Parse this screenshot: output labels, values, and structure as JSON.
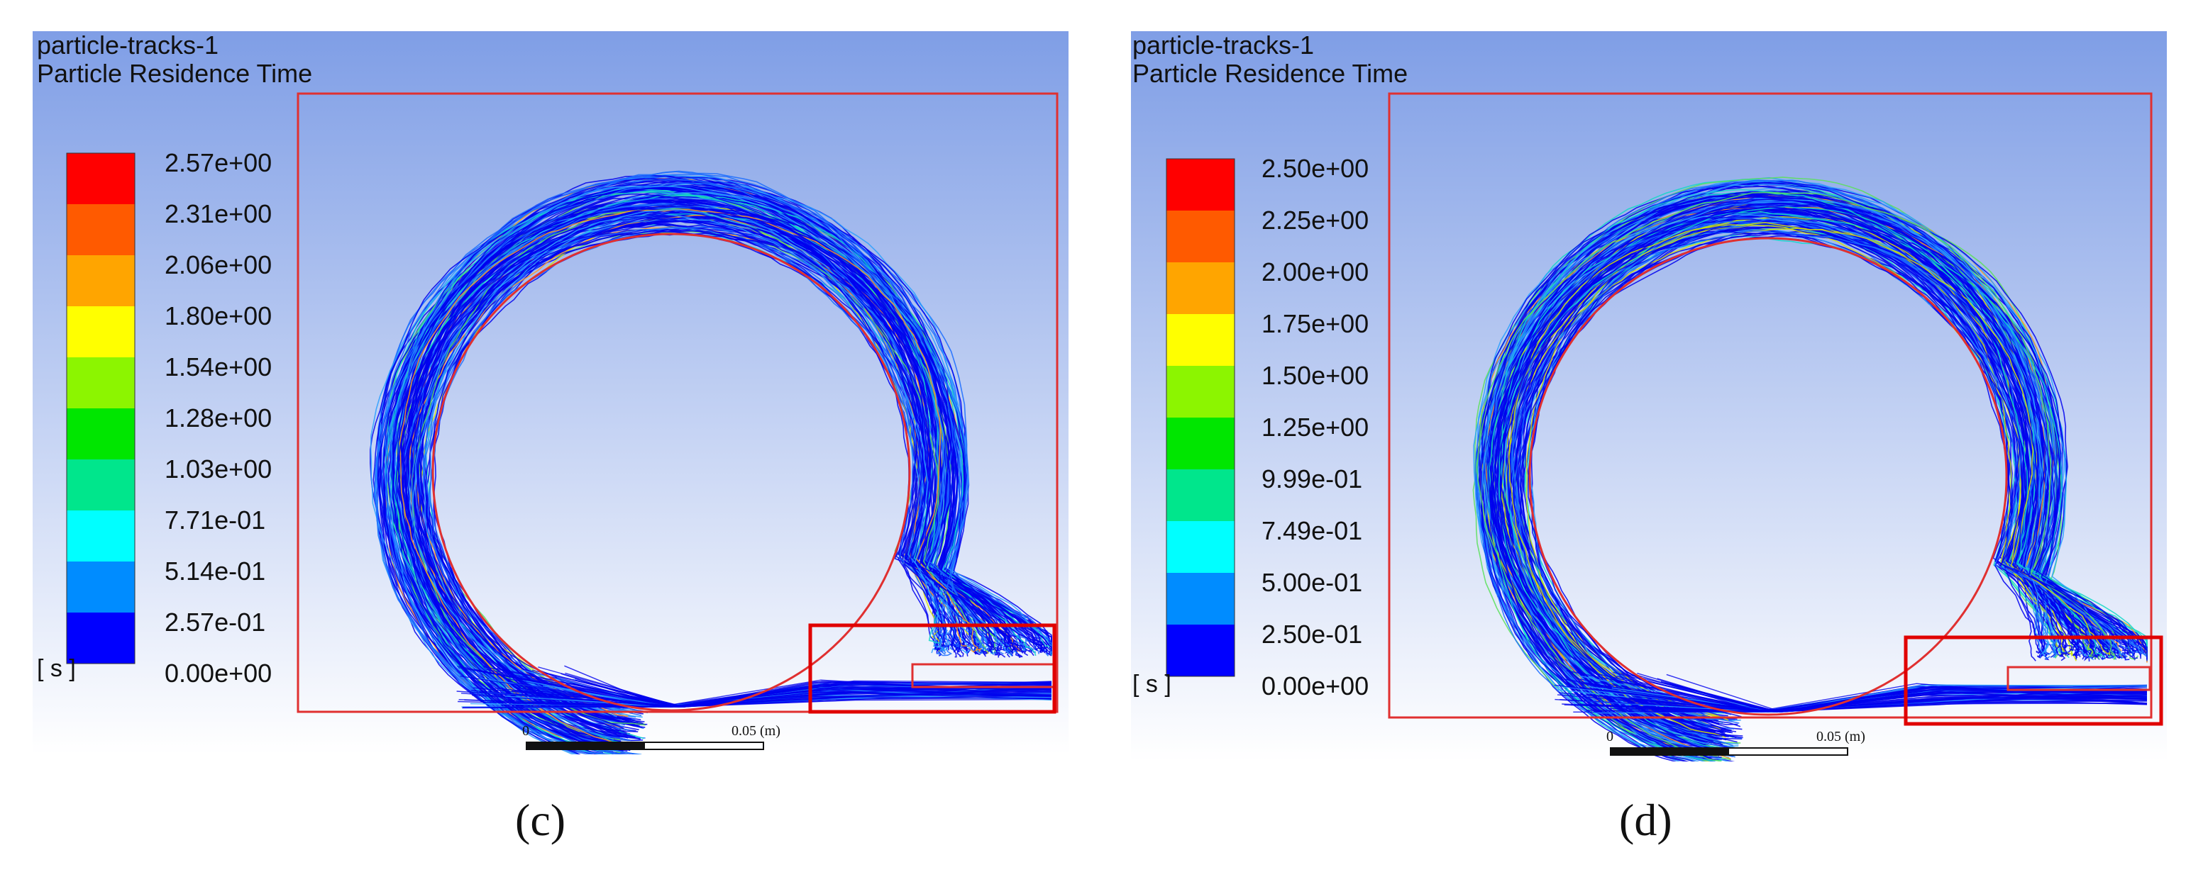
{
  "panels": [
    {
      "id": "c",
      "title_line1": "particle-tracks-1",
      "title_line2": "Particle Residence Time",
      "unit": "[ s ]",
      "legend": [
        "2.57e+00",
        "2.31e+00",
        "2.06e+00",
        "1.80e+00",
        "1.54e+00",
        "1.28e+00",
        "1.03e+00",
        "7.71e-01",
        "5.14e-01",
        "2.57e-01",
        "0.00e+00"
      ],
      "scale_zero": "0",
      "scale_end": "0.05 (m)",
      "caption": "(c)"
    },
    {
      "id": "d",
      "title_line1": "particle-tracks-1",
      "title_line2": "Particle Residence Time",
      "unit": "[ s ]",
      "legend": [
        "2.50e+00",
        "2.25e+00",
        "2.00e+00",
        "1.75e+00",
        "1.50e+00",
        "1.25e+00",
        "9.99e-01",
        "7.49e-01",
        "5.00e-01",
        "2.50e-01",
        "0.00e+00"
      ],
      "scale_zero": "0",
      "scale_end": "0.05 (m)",
      "caption": "(d)"
    }
  ],
  "colors": {
    "colormap": [
      "#ff0000",
      "#ff5a00",
      "#ffa500",
      "#ffff00",
      "#8cf500",
      "#00e600",
      "#00e68c",
      "#00ffff",
      "#008cff",
      "#0000ff"
    ],
    "domain_outline": "#e03030",
    "highlight_box": "#e00000",
    "background_top": "#7f9ee6",
    "background_bottom": "#ffffff"
  }
}
